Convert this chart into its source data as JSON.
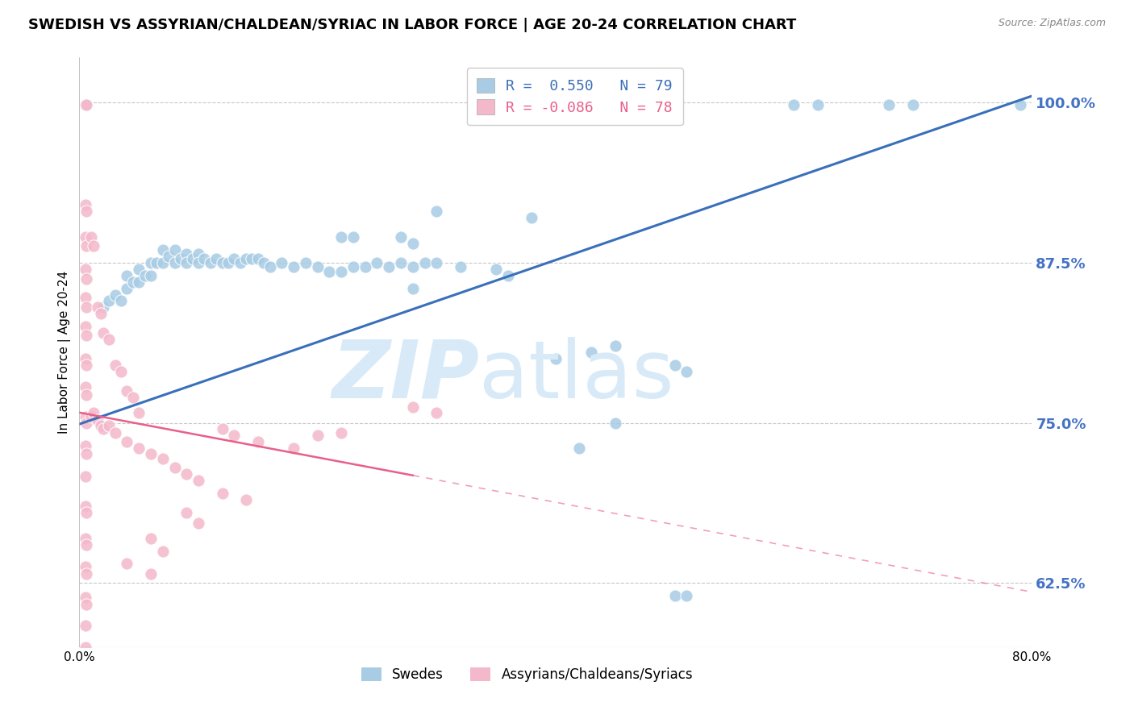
{
  "title": "SWEDISH VS ASSYRIAN/CHALDEAN/SYRIAC IN LABOR FORCE | AGE 20-24 CORRELATION CHART",
  "source": "Source: ZipAtlas.com",
  "ylabel": "In Labor Force | Age 20-24",
  "xlim": [
    0.0,
    0.8
  ],
  "ylim": [
    0.575,
    1.035
  ],
  "xticks": [
    0.0,
    0.1,
    0.2,
    0.3,
    0.4,
    0.5,
    0.6,
    0.7,
    0.8
  ],
  "xticklabels": [
    "0.0%",
    "",
    "",
    "",
    "",
    "",
    "",
    "",
    "80.0%"
  ],
  "ytick_positions": [
    0.625,
    0.75,
    0.875,
    1.0
  ],
  "ytick_labels": [
    "62.5%",
    "75.0%",
    "87.5%",
    "100.0%"
  ],
  "R_blue": 0.55,
  "N_blue": 79,
  "R_pink": -0.086,
  "N_pink": 78,
  "blue_color": "#a8cce4",
  "pink_color": "#f4b8cb",
  "blue_line_color": "#3a6fba",
  "pink_line_color": "#e8608a",
  "background_color": "#ffffff",
  "grid_color": "#c8c8c8",
  "watermark_color": "#d8eaf8",
  "legend_label_blue": "Swedes",
  "legend_label_pink": "Assyrians/Chaldeans/Syriacs",
  "title_fontsize": 13,
  "axis_label_fontsize": 11,
  "tick_fontsize": 11,
  "blue_line_x0": 0.0,
  "blue_line_y0": 0.749,
  "blue_line_x1": 0.8,
  "blue_line_y1": 1.005,
  "pink_line_x0": 0.0,
  "pink_line_y0": 0.758,
  "pink_line_x1": 0.8,
  "pink_line_y1": 0.618,
  "blue_dots": [
    [
      0.005,
      0.998
    ],
    [
      0.006,
      0.998
    ],
    [
      0.02,
      0.84
    ],
    [
      0.025,
      0.845
    ],
    [
      0.03,
      0.85
    ],
    [
      0.035,
      0.845
    ],
    [
      0.04,
      0.855
    ],
    [
      0.04,
      0.865
    ],
    [
      0.045,
      0.86
    ],
    [
      0.05,
      0.86
    ],
    [
      0.05,
      0.87
    ],
    [
      0.055,
      0.865
    ],
    [
      0.06,
      0.865
    ],
    [
      0.06,
      0.875
    ],
    [
      0.065,
      0.875
    ],
    [
      0.07,
      0.875
    ],
    [
      0.07,
      0.885
    ],
    [
      0.075,
      0.88
    ],
    [
      0.08,
      0.875
    ],
    [
      0.08,
      0.885
    ],
    [
      0.085,
      0.878
    ],
    [
      0.09,
      0.882
    ],
    [
      0.09,
      0.875
    ],
    [
      0.095,
      0.878
    ],
    [
      0.1,
      0.882
    ],
    [
      0.1,
      0.875
    ],
    [
      0.105,
      0.878
    ],
    [
      0.11,
      0.875
    ],
    [
      0.115,
      0.878
    ],
    [
      0.12,
      0.875
    ],
    [
      0.125,
      0.875
    ],
    [
      0.13,
      0.878
    ],
    [
      0.135,
      0.875
    ],
    [
      0.14,
      0.878
    ],
    [
      0.145,
      0.878
    ],
    [
      0.15,
      0.878
    ],
    [
      0.155,
      0.875
    ],
    [
      0.16,
      0.872
    ],
    [
      0.17,
      0.875
    ],
    [
      0.18,
      0.872
    ],
    [
      0.19,
      0.875
    ],
    [
      0.2,
      0.872
    ],
    [
      0.21,
      0.868
    ],
    [
      0.22,
      0.868
    ],
    [
      0.23,
      0.872
    ],
    [
      0.24,
      0.872
    ],
    [
      0.25,
      0.875
    ],
    [
      0.26,
      0.872
    ],
    [
      0.27,
      0.875
    ],
    [
      0.28,
      0.872
    ],
    [
      0.29,
      0.875
    ],
    [
      0.3,
      0.875
    ],
    [
      0.32,
      0.872
    ],
    [
      0.27,
      0.895
    ],
    [
      0.28,
      0.89
    ],
    [
      0.35,
      0.87
    ],
    [
      0.36,
      0.865
    ],
    [
      0.22,
      0.895
    ],
    [
      0.23,
      0.895
    ],
    [
      0.4,
      0.8
    ],
    [
      0.43,
      0.805
    ],
    [
      0.45,
      0.81
    ],
    [
      0.5,
      0.795
    ],
    [
      0.51,
      0.79
    ],
    [
      0.42,
      0.73
    ],
    [
      0.45,
      0.75
    ],
    [
      0.6,
      0.998
    ],
    [
      0.62,
      0.998
    ],
    [
      0.68,
      0.998
    ],
    [
      0.7,
      0.998
    ],
    [
      0.79,
      0.998
    ],
    [
      0.38,
      0.91
    ],
    [
      0.3,
      0.915
    ],
    [
      0.28,
      0.855
    ],
    [
      0.5,
      0.615
    ],
    [
      0.51,
      0.615
    ]
  ],
  "pink_dots": [
    [
      0.005,
      0.998
    ],
    [
      0.006,
      0.998
    ],
    [
      0.005,
      0.92
    ],
    [
      0.006,
      0.915
    ],
    [
      0.005,
      0.895
    ],
    [
      0.006,
      0.888
    ],
    [
      0.005,
      0.87
    ],
    [
      0.006,
      0.862
    ],
    [
      0.005,
      0.848
    ],
    [
      0.006,
      0.84
    ],
    [
      0.005,
      0.825
    ],
    [
      0.006,
      0.818
    ],
    [
      0.005,
      0.8
    ],
    [
      0.006,
      0.795
    ],
    [
      0.005,
      0.778
    ],
    [
      0.006,
      0.772
    ],
    [
      0.005,
      0.755
    ],
    [
      0.006,
      0.75
    ],
    [
      0.005,
      0.732
    ],
    [
      0.006,
      0.726
    ],
    [
      0.005,
      0.708
    ],
    [
      0.005,
      0.685
    ],
    [
      0.006,
      0.68
    ],
    [
      0.005,
      0.66
    ],
    [
      0.006,
      0.655
    ],
    [
      0.005,
      0.638
    ],
    [
      0.006,
      0.632
    ],
    [
      0.005,
      0.614
    ],
    [
      0.006,
      0.608
    ],
    [
      0.005,
      0.592
    ],
    [
      0.01,
      0.755
    ],
    [
      0.012,
      0.758
    ],
    [
      0.015,
      0.752
    ],
    [
      0.018,
      0.748
    ],
    [
      0.02,
      0.745
    ],
    [
      0.025,
      0.748
    ],
    [
      0.03,
      0.742
    ],
    [
      0.04,
      0.735
    ],
    [
      0.05,
      0.73
    ],
    [
      0.06,
      0.726
    ],
    [
      0.07,
      0.722
    ],
    [
      0.08,
      0.715
    ],
    [
      0.09,
      0.71
    ],
    [
      0.1,
      0.705
    ],
    [
      0.12,
      0.745
    ],
    [
      0.13,
      0.74
    ],
    [
      0.15,
      0.735
    ],
    [
      0.18,
      0.73
    ],
    [
      0.2,
      0.74
    ],
    [
      0.22,
      0.742
    ],
    [
      0.01,
      0.895
    ],
    [
      0.012,
      0.888
    ],
    [
      0.015,
      0.84
    ],
    [
      0.018,
      0.835
    ],
    [
      0.02,
      0.82
    ],
    [
      0.025,
      0.815
    ],
    [
      0.03,
      0.795
    ],
    [
      0.035,
      0.79
    ],
    [
      0.04,
      0.775
    ],
    [
      0.045,
      0.77
    ],
    [
      0.05,
      0.758
    ],
    [
      0.06,
      0.66
    ],
    [
      0.07,
      0.65
    ],
    [
      0.09,
      0.68
    ],
    [
      0.1,
      0.672
    ],
    [
      0.12,
      0.695
    ],
    [
      0.14,
      0.69
    ],
    [
      0.28,
      0.762
    ],
    [
      0.3,
      0.758
    ],
    [
      0.04,
      0.64
    ],
    [
      0.06,
      0.632
    ],
    [
      0.005,
      0.575
    ]
  ]
}
